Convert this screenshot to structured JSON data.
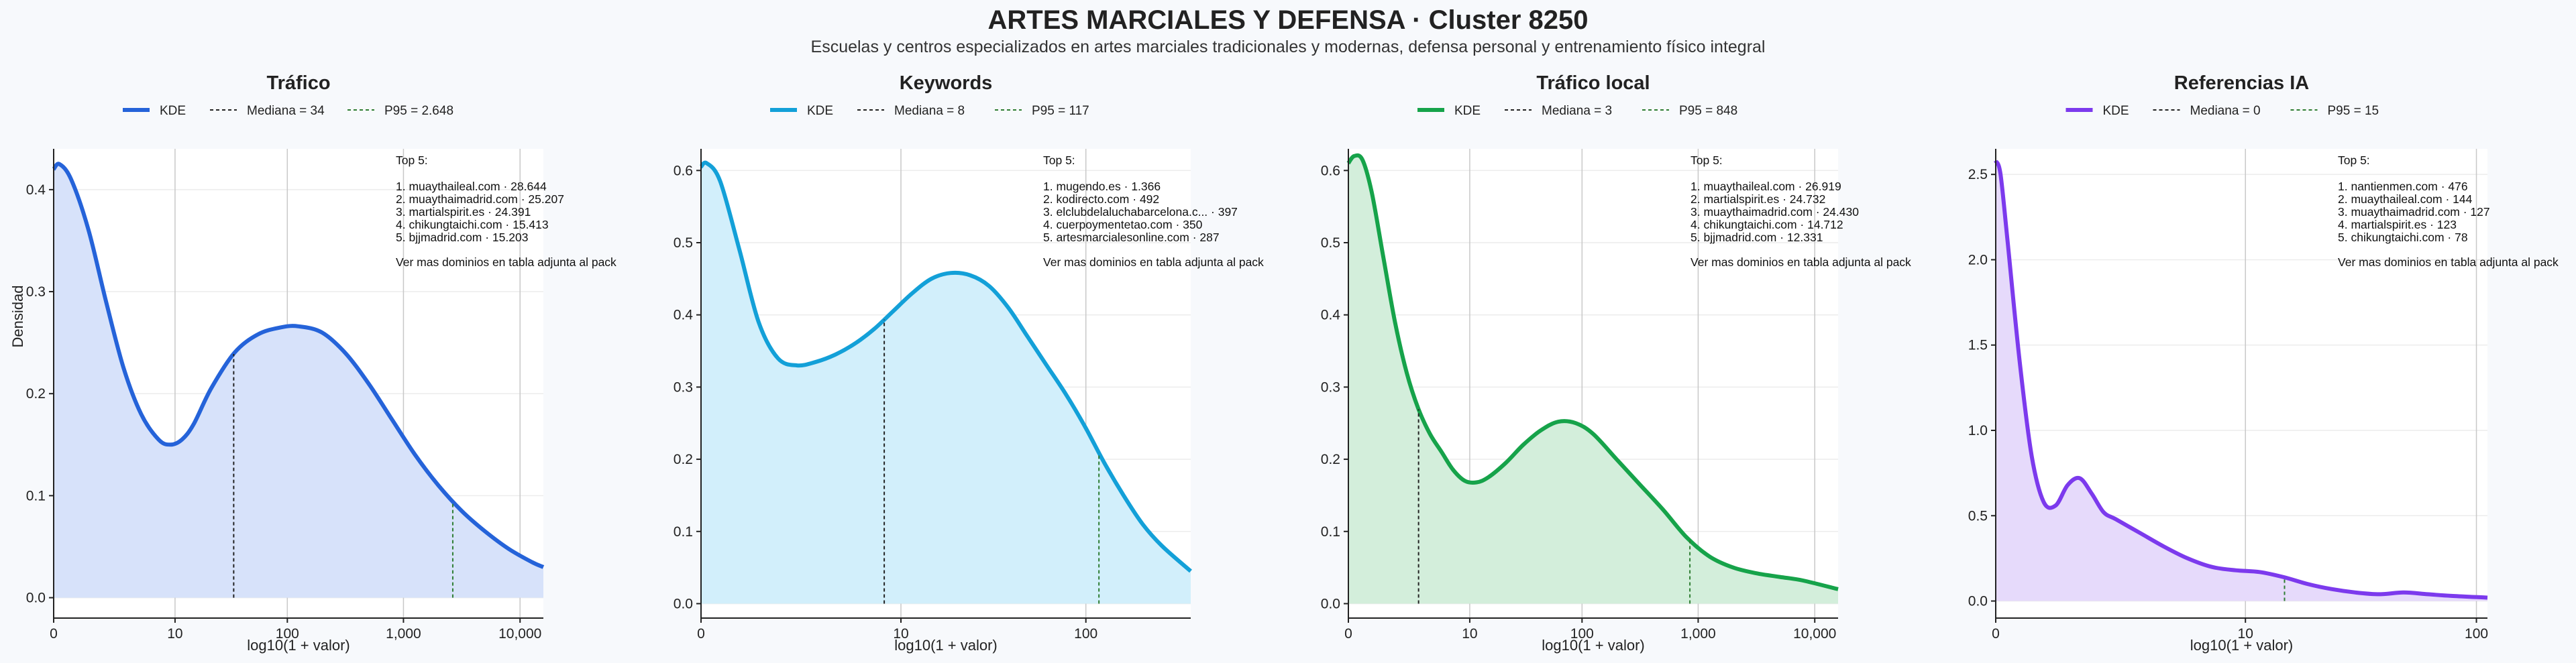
{
  "title": "ARTES MARCIALES Y DEFENSA · Cluster 8250",
  "subtitle": "Escuelas y centros especializados en artes marciales tradicionales y modernas, defensa personal y entrenamiento físico integral",
  "colors": {
    "background": "#f7f9fc",
    "median_line": "#222222",
    "p95_line": "#2e7d32"
  },
  "chart_data": [
    {
      "type": "area",
      "title": "Tráfico",
      "color": "#2563d9",
      "fill": "#d7e2fa",
      "xlabel": "log10(1 + valor)",
      "ylabel": "Densidad",
      "xlim": [
        0,
        4.2
      ],
      "ylim": [
        -0.02,
        0.44
      ],
      "xticks": [
        {
          "v": 0,
          "label": "0"
        },
        {
          "v": 1.041,
          "label": "10"
        },
        {
          "v": 2.004,
          "label": "100"
        },
        {
          "v": 3.0,
          "label": "1,000"
        },
        {
          "v": 4.0,
          "label": "10,000"
        }
      ],
      "yticks": [
        {
          "v": 0,
          "label": "0.0"
        },
        {
          "v": 0.1,
          "label": "0.1"
        },
        {
          "v": 0.2,
          "label": "0.2"
        },
        {
          "v": 0.3,
          "label": "0.3"
        },
        {
          "v": 0.4,
          "label": "0.4"
        }
      ],
      "legend": {
        "kde": "KDE",
        "median": "Mediana = 34",
        "p95": "P95 = 2.648"
      },
      "median": 1.544,
      "p95": 3.423,
      "kde": {
        "x": [
          0,
          0.05,
          0.15,
          0.3,
          0.45,
          0.6,
          0.75,
          0.9,
          1.0,
          1.1,
          1.2,
          1.35,
          1.55,
          1.75,
          1.95,
          2.1,
          2.3,
          2.5,
          2.7,
          2.9,
          3.1,
          3.3,
          3.5,
          3.7,
          3.9,
          4.1,
          4.2
        ],
        "y": [
          0.42,
          0.425,
          0.41,
          0.36,
          0.29,
          0.225,
          0.18,
          0.155,
          0.15,
          0.155,
          0.17,
          0.205,
          0.24,
          0.258,
          0.265,
          0.266,
          0.26,
          0.24,
          0.21,
          0.175,
          0.14,
          0.11,
          0.085,
          0.065,
          0.048,
          0.035,
          0.03
        ]
      },
      "top5": {
        "header": "Top 5:",
        "items": [
          "1. muaythaileal.com · 28.644",
          "2. muaythaimadrid.com · 25.207",
          "3. martialspirit.es · 24.391",
          "4. chikungtaichi.com · 15.413",
          "5. bjjmadrid.com · 15.203"
        ],
        "footer": "Ver mas dominios en tabla adjunta al pack"
      }
    },
    {
      "type": "area",
      "title": "Keywords",
      "color": "#13a0d8",
      "fill": "#d2effb",
      "xlabel": "log10(1 + valor)",
      "ylabel": "",
      "xlim": [
        0,
        2.55
      ],
      "ylim": [
        -0.02,
        0.63
      ],
      "xticks": [
        {
          "v": 0,
          "label": "0"
        },
        {
          "v": 1.041,
          "label": "10"
        },
        {
          "v": 2.004,
          "label": "100"
        }
      ],
      "yticks": [
        {
          "v": 0,
          "label": "0.0"
        },
        {
          "v": 0.1,
          "label": "0.1"
        },
        {
          "v": 0.2,
          "label": "0.2"
        },
        {
          "v": 0.3,
          "label": "0.3"
        },
        {
          "v": 0.4,
          "label": "0.4"
        },
        {
          "v": 0.5,
          "label": "0.5"
        },
        {
          "v": 0.6,
          "label": "0.6"
        }
      ],
      "legend": {
        "kde": "KDE",
        "median": "Mediana = 8",
        "p95": "P95 = 117"
      },
      "median": 0.954,
      "p95": 2.072,
      "kde": {
        "x": [
          0,
          0.03,
          0.1,
          0.2,
          0.3,
          0.4,
          0.5,
          0.6,
          0.7,
          0.8,
          0.9,
          1.0,
          1.1,
          1.2,
          1.3,
          1.4,
          1.5,
          1.6,
          1.7,
          1.8,
          1.9,
          2.0,
          2.1,
          2.2,
          2.3,
          2.4,
          2.55
        ],
        "y": [
          0.605,
          0.61,
          0.585,
          0.49,
          0.39,
          0.34,
          0.33,
          0.335,
          0.345,
          0.36,
          0.38,
          0.405,
          0.43,
          0.45,
          0.458,
          0.455,
          0.44,
          0.41,
          0.37,
          0.33,
          0.29,
          0.245,
          0.195,
          0.15,
          0.11,
          0.08,
          0.045
        ]
      },
      "top5": {
        "header": "Top 5:",
        "items": [
          "1. mugendo.es · 1.366",
          "2. kodirecto.com · 492",
          "3. elclubdelaluchabarcelona.c... · 397",
          "4. cuerpoymentetao.com · 350",
          "5. artesmarcialesonline.com · 287"
        ],
        "footer": "Ver mas dominios en tabla adjunta al pack"
      }
    },
    {
      "type": "area",
      "title": "Tráfico local",
      "color": "#16a34a",
      "fill": "#d3eedb",
      "xlabel": "log10(1 + valor)",
      "ylabel": "",
      "xlim": [
        0,
        4.2
      ],
      "ylim": [
        -0.02,
        0.63
      ],
      "xticks": [
        {
          "v": 0,
          "label": "0"
        },
        {
          "v": 1.041,
          "label": "10"
        },
        {
          "v": 2.004,
          "label": "100"
        },
        {
          "v": 3.0,
          "label": "1,000"
        },
        {
          "v": 4.0,
          "label": "10,000"
        }
      ],
      "yticks": [
        {
          "v": 0,
          "label": "0.0"
        },
        {
          "v": 0.1,
          "label": "0.1"
        },
        {
          "v": 0.2,
          "label": "0.2"
        },
        {
          "v": 0.3,
          "label": "0.3"
        },
        {
          "v": 0.4,
          "label": "0.4"
        },
        {
          "v": 0.5,
          "label": "0.5"
        },
        {
          "v": 0.6,
          "label": "0.6"
        }
      ],
      "legend": {
        "kde": "KDE",
        "median": "Mediana = 3",
        "p95": "P95 = 848"
      },
      "median": 0.602,
      "p95": 2.929,
      "kde": {
        "x": [
          0,
          0.05,
          0.12,
          0.2,
          0.3,
          0.4,
          0.5,
          0.6,
          0.7,
          0.8,
          0.9,
          1.0,
          1.1,
          1.2,
          1.35,
          1.5,
          1.65,
          1.8,
          1.95,
          2.1,
          2.3,
          2.5,
          2.7,
          2.9,
          3.1,
          3.3,
          3.5,
          3.7,
          3.9,
          4.2
        ],
        "y": [
          0.61,
          0.62,
          0.615,
          0.57,
          0.48,
          0.39,
          0.32,
          0.27,
          0.235,
          0.21,
          0.185,
          0.17,
          0.168,
          0.175,
          0.195,
          0.22,
          0.24,
          0.252,
          0.25,
          0.235,
          0.2,
          0.165,
          0.13,
          0.092,
          0.065,
          0.05,
          0.042,
          0.037,
          0.032,
          0.02
        ]
      },
      "top5": {
        "header": "Top 5:",
        "items": [
          "1. muaythaileal.com · 26.919",
          "2. martialspirit.es · 24.732",
          "3. muaythaimadrid.com · 24.430",
          "4. chikungtaichi.com · 14.712",
          "5. bjjmadrid.com · 12.331"
        ],
        "footer": "Ver mas dominios en tabla adjunta al pack"
      }
    },
    {
      "type": "area",
      "title": "Referencias IA",
      "color": "#7c3aed",
      "fill": "#e6dafb",
      "xlabel": "log10(1 + valor)",
      "ylabel": "",
      "xlim": [
        0,
        2.05
      ],
      "ylim": [
        -0.1,
        2.65
      ],
      "xticks": [
        {
          "v": 0,
          "label": "0"
        },
        {
          "v": 1.041,
          "label": "10"
        },
        {
          "v": 2.004,
          "label": "100"
        }
      ],
      "yticks": [
        {
          "v": 0,
          "label": "0.0"
        },
        {
          "v": 0.5,
          "label": "0.5"
        },
        {
          "v": 1.0,
          "label": "1.0"
        },
        {
          "v": 1.5,
          "label": "1.5"
        },
        {
          "v": 2.0,
          "label": "2.0"
        },
        {
          "v": 2.5,
          "label": "2.5"
        }
      ],
      "legend": {
        "kde": "KDE",
        "median": "Mediana = 0",
        "p95": "P95 = 15"
      },
      "median": 0,
      "p95": 1.204,
      "kde": {
        "x": [
          0,
          0.02,
          0.05,
          0.1,
          0.15,
          0.2,
          0.25,
          0.3,
          0.35,
          0.4,
          0.45,
          0.5,
          0.6,
          0.7,
          0.8,
          0.9,
          1.0,
          1.1,
          1.2,
          1.3,
          1.4,
          1.5,
          1.6,
          1.7,
          1.8,
          1.9,
          2.05
        ],
        "y": [
          2.58,
          2.5,
          2.1,
          1.4,
          0.85,
          0.58,
          0.56,
          0.68,
          0.72,
          0.63,
          0.52,
          0.48,
          0.4,
          0.32,
          0.25,
          0.2,
          0.18,
          0.17,
          0.14,
          0.1,
          0.07,
          0.05,
          0.04,
          0.05,
          0.04,
          0.03,
          0.02
        ]
      },
      "top5": {
        "header": "Top 5:",
        "items": [
          "1. nantienmen.com · 476",
          "2. muaythaileal.com · 144",
          "3. muaythaimadrid.com · 127",
          "4. martialspirit.es · 123",
          "5. chikungtaichi.com · 78"
        ],
        "footer": "Ver mas dominios en tabla adjunta al pack"
      }
    }
  ]
}
